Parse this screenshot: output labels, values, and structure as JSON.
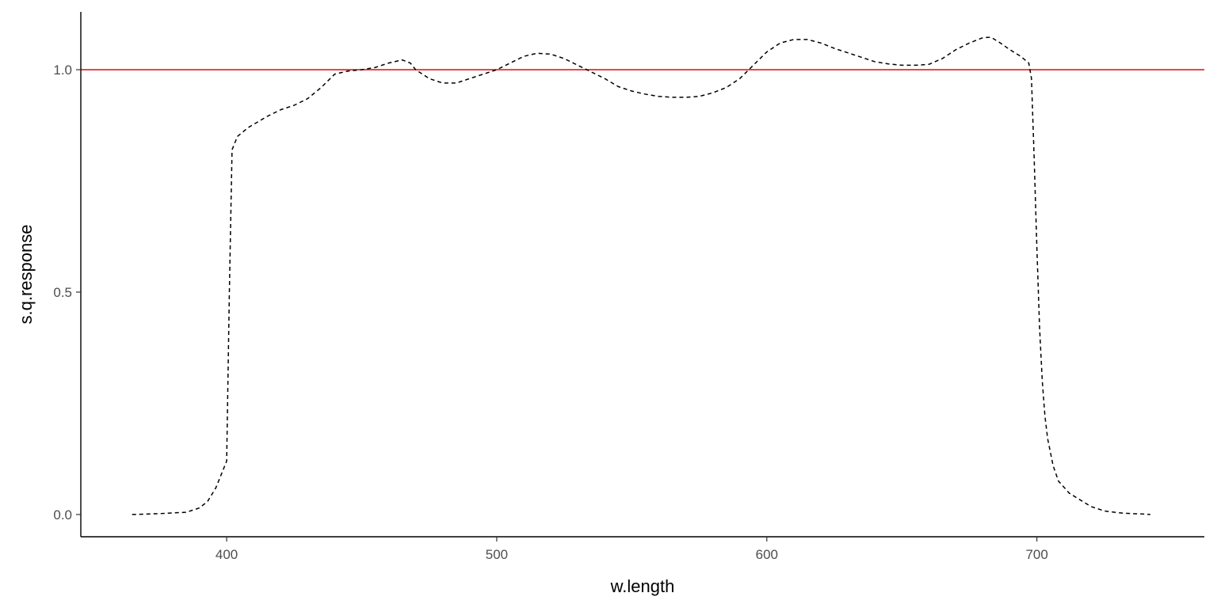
{
  "chart_data": {
    "type": "line",
    "title": "",
    "xlabel": "w.length",
    "ylabel": "s.q.response",
    "xlim": [
      346,
      762
    ],
    "ylim": [
      -0.05,
      1.13
    ],
    "x_ticks": [
      400,
      500,
      600,
      700
    ],
    "x_tick_labels": [
      "400",
      "500",
      "600",
      "700"
    ],
    "y_ticks": [
      0,
      0.5,
      1
    ],
    "y_tick_labels": [
      "0.0",
      "0.5",
      "1.0"
    ],
    "grid": false,
    "legend": "none",
    "reference_line": {
      "y": 1.0,
      "color": "#e41a1c"
    },
    "series": [
      {
        "line_style": "dashed",
        "color": "#000000",
        "x": [
          365,
          375,
          385,
          390,
          393,
          396,
          398,
          400,
          401,
          402,
          404,
          408,
          415,
          420,
          425,
          430,
          435,
          440,
          445,
          450,
          455,
          460,
          465,
          468,
          470,
          475,
          480,
          485,
          490,
          495,
          500,
          505,
          510,
          515,
          520,
          525,
          530,
          535,
          540,
          545,
          550,
          555,
          560,
          565,
          570,
          575,
          580,
          585,
          590,
          595,
          600,
          605,
          610,
          615,
          620,
          625,
          630,
          635,
          640,
          645,
          650,
          655,
          660,
          665,
          670,
          675,
          680,
          683,
          686,
          690,
          694,
          697,
          698,
          699,
          700,
          701,
          702,
          703,
          704,
          706,
          708,
          712,
          716,
          720,
          725,
          730,
          735,
          740,
          742
        ],
        "y": [
          0.0,
          0.002,
          0.005,
          0.015,
          0.03,
          0.06,
          0.09,
          0.12,
          0.5,
          0.82,
          0.85,
          0.87,
          0.895,
          0.91,
          0.92,
          0.935,
          0.96,
          0.99,
          0.997,
          1.0,
          1.005,
          1.015,
          1.022,
          1.015,
          1.0,
          0.98,
          0.97,
          0.97,
          0.98,
          0.99,
          1.0,
          1.015,
          1.03,
          1.037,
          1.035,
          1.025,
          1.01,
          0.995,
          0.98,
          0.962,
          0.952,
          0.945,
          0.94,
          0.938,
          0.938,
          0.94,
          0.948,
          0.96,
          0.98,
          1.01,
          1.04,
          1.06,
          1.068,
          1.068,
          1.06,
          1.048,
          1.038,
          1.028,
          1.018,
          1.013,
          1.01,
          1.01,
          1.012,
          1.025,
          1.045,
          1.06,
          1.072,
          1.073,
          1.062,
          1.045,
          1.03,
          1.015,
          0.98,
          0.8,
          0.6,
          0.42,
          0.3,
          0.22,
          0.17,
          0.11,
          0.075,
          0.048,
          0.033,
          0.018,
          0.008,
          0.004,
          0.002,
          0.001,
          0.0
        ]
      }
    ]
  }
}
